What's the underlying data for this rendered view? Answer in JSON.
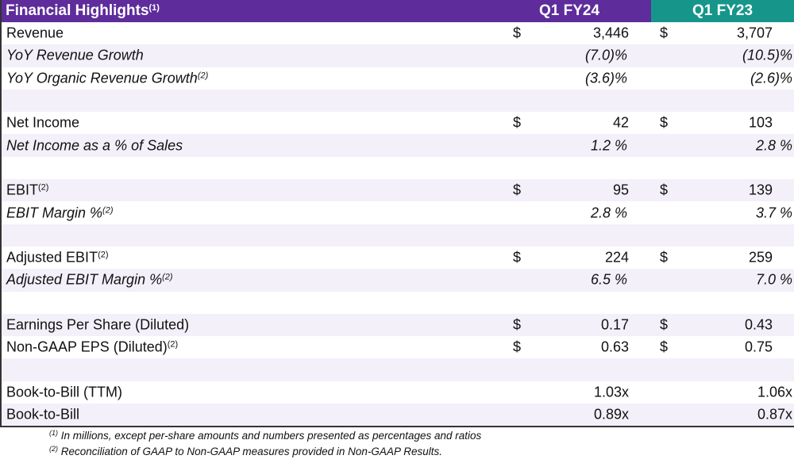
{
  "header": {
    "title": "Financial Highlights",
    "title_note": "(1)",
    "col1": "Q1 FY24",
    "col2": "Q1 FY23"
  },
  "colors": {
    "header_purple": "#5e2c9b",
    "header_teal": "#16968b",
    "stripe": "#f4f0fa"
  },
  "rows": [
    {
      "label": "Revenue",
      "note": "",
      "italic": false,
      "cur1": "$",
      "v1": "3,446",
      "cur2": "$",
      "v2": "3,707"
    },
    {
      "label": "YoY Revenue Growth",
      "note": "",
      "italic": true,
      "cur1": "",
      "v1": "(7.0)%",
      "cur2": "",
      "v2": "(10.5)%"
    },
    {
      "label": "YoY Organic Revenue Growth",
      "note": "(2)",
      "italic": true,
      "cur1": "",
      "v1": "(3.6)%",
      "cur2": "",
      "v2": "(2.6)%"
    },
    {
      "label": "",
      "note": "",
      "italic": false,
      "cur1": "",
      "v1": "",
      "cur2": "",
      "v2": ""
    },
    {
      "label": "Net Income",
      "note": "",
      "italic": false,
      "cur1": "$",
      "v1": "42",
      "cur2": "$",
      "v2": "103"
    },
    {
      "label": "Net Income as a % of Sales",
      "note": "",
      "italic": true,
      "cur1": "",
      "v1": "1.2 %",
      "cur2": "",
      "v2": "2.8 %"
    },
    {
      "label": "",
      "note": "",
      "italic": false,
      "cur1": "",
      "v1": "",
      "cur2": "",
      "v2": ""
    },
    {
      "label": "EBIT",
      "note": "(2)",
      "italic": false,
      "cur1": "$",
      "v1": "95",
      "cur2": "$",
      "v2": "139"
    },
    {
      "label": "EBIT Margin %",
      "note": "(2)",
      "italic": true,
      "cur1": "",
      "v1": "2.8 %",
      "cur2": "",
      "v2": "3.7 %"
    },
    {
      "label": "",
      "note": "",
      "italic": false,
      "cur1": "",
      "v1": "",
      "cur2": "",
      "v2": ""
    },
    {
      "label": "Adjusted EBIT",
      "note": "(2)",
      "italic": false,
      "cur1": "$",
      "v1": "224",
      "cur2": "$",
      "v2": "259"
    },
    {
      "label": "Adjusted EBIT Margin %",
      "note": "(2)",
      "italic": true,
      "cur1": "",
      "v1": "6.5 %",
      "cur2": "",
      "v2": "7.0 %"
    },
    {
      "label": "",
      "note": "",
      "italic": false,
      "cur1": "",
      "v1": "",
      "cur2": "",
      "v2": ""
    },
    {
      "label": "Earnings Per Share (Diluted)",
      "note": "",
      "italic": false,
      "cur1": "$",
      "v1": "0.17",
      "cur2": "$",
      "v2": "0.43"
    },
    {
      "label": "Non-GAAP EPS  (Diluted)",
      "note": "(2)",
      "italic": false,
      "cur1": "$",
      "v1": "0.63",
      "cur2": "$",
      "v2": "0.75"
    },
    {
      "label": "",
      "note": "",
      "italic": false,
      "cur1": "",
      "v1": "",
      "cur2": "",
      "v2": ""
    },
    {
      "label": "Book-to-Bill (TTM)",
      "note": "",
      "italic": false,
      "cur1": "",
      "v1": "1.03x",
      "cur2": "",
      "v2": "1.06x"
    },
    {
      "label": "Book-to-Bill",
      "note": "",
      "italic": false,
      "cur1": "",
      "v1": "0.89x",
      "cur2": "",
      "v2": "0.87x"
    }
  ],
  "footnotes": [
    {
      "mark": "(1)",
      "text": " In millions, except per-share amounts and numbers presented as percentages and ratios"
    },
    {
      "mark": "(2)",
      "text": " Reconciliation of GAAP to Non-GAAP measures provided in Non-GAAP Results."
    }
  ]
}
